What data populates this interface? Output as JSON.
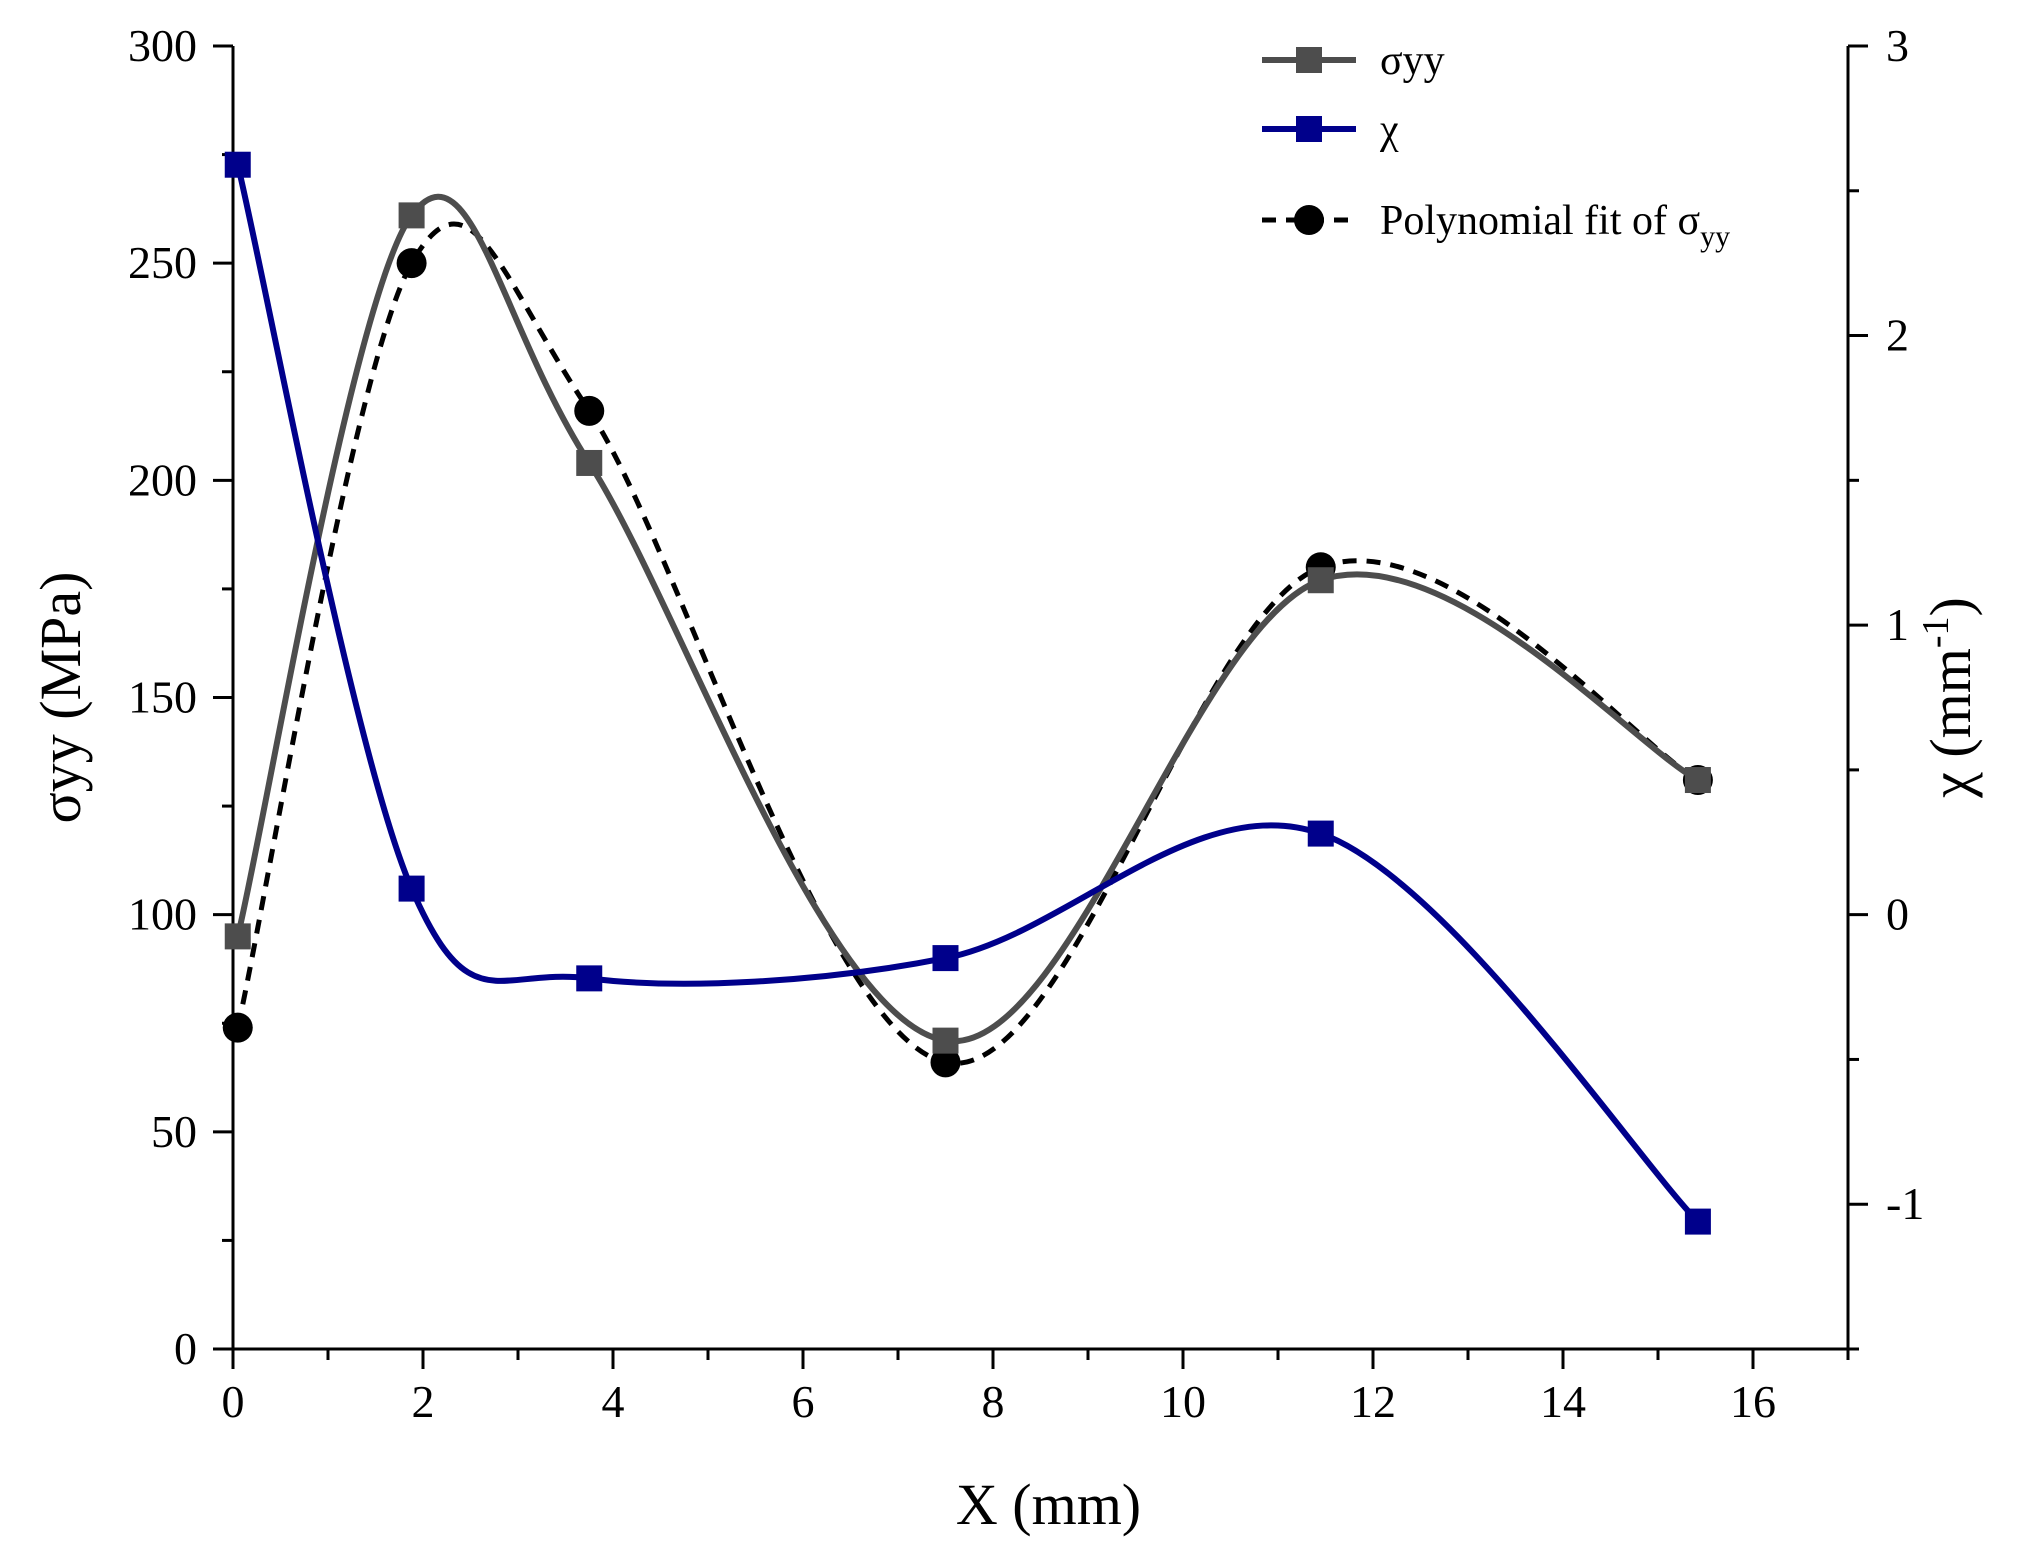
{
  "chart_data": {
    "type": "line",
    "x_axis": {
      "label": "X (mm)",
      "range": [
        0,
        17
      ],
      "ticks": [
        0,
        2,
        4,
        6,
        8,
        10,
        12,
        14,
        16
      ],
      "minor_step": 1
    },
    "y_axis_left": {
      "label": "σyy (MPa)",
      "range": [
        0,
        300
      ],
      "ticks": [
        0,
        50,
        100,
        150,
        200,
        250,
        300
      ],
      "minor_step": 25
    },
    "y_axis_right": {
      "label": "χ (mm⁻¹)",
      "label_base": "χ (mm",
      "label_sup": "-1",
      "label_close": ")",
      "range": [
        -1.5,
        3
      ],
      "ticks": [
        -1,
        0,
        1,
        2,
        3
      ],
      "tick_labels": [
        "-1",
        "0",
        "1",
        "2",
        "3"
      ],
      "minor_step": 0.5
    },
    "grid": false,
    "legend_position": "top-right",
    "series": [
      {
        "name": "σyy",
        "axis": "left",
        "color": "#4d4d4d",
        "marker": "square",
        "line": "solid-spline",
        "x": [
          0.05,
          1.88,
          3.75,
          7.5,
          11.45,
          15.42
        ],
        "y": [
          95,
          261,
          204,
          71,
          177,
          131
        ]
      },
      {
        "name": "χ",
        "axis": "right",
        "color": "#00008b",
        "marker": "square",
        "line": "solid-spline",
        "x": [
          0.05,
          1.88,
          3.75,
          7.5,
          11.45,
          15.42
        ],
        "y": [
          2.59,
          0.09,
          -0.22,
          -0.15,
          0.28,
          -1.06
        ]
      },
      {
        "name": "Polynomial fit of σyy",
        "name_base": "Polynomial fit of σ",
        "name_sub": "yy",
        "axis": "left",
        "color": "#000000",
        "marker": "circle",
        "line": "dashed-spline",
        "x": [
          0.05,
          1.88,
          3.75,
          7.5,
          11.45,
          15.42
        ],
        "y": [
          74,
          250,
          216,
          66,
          180,
          131
        ]
      }
    ]
  }
}
